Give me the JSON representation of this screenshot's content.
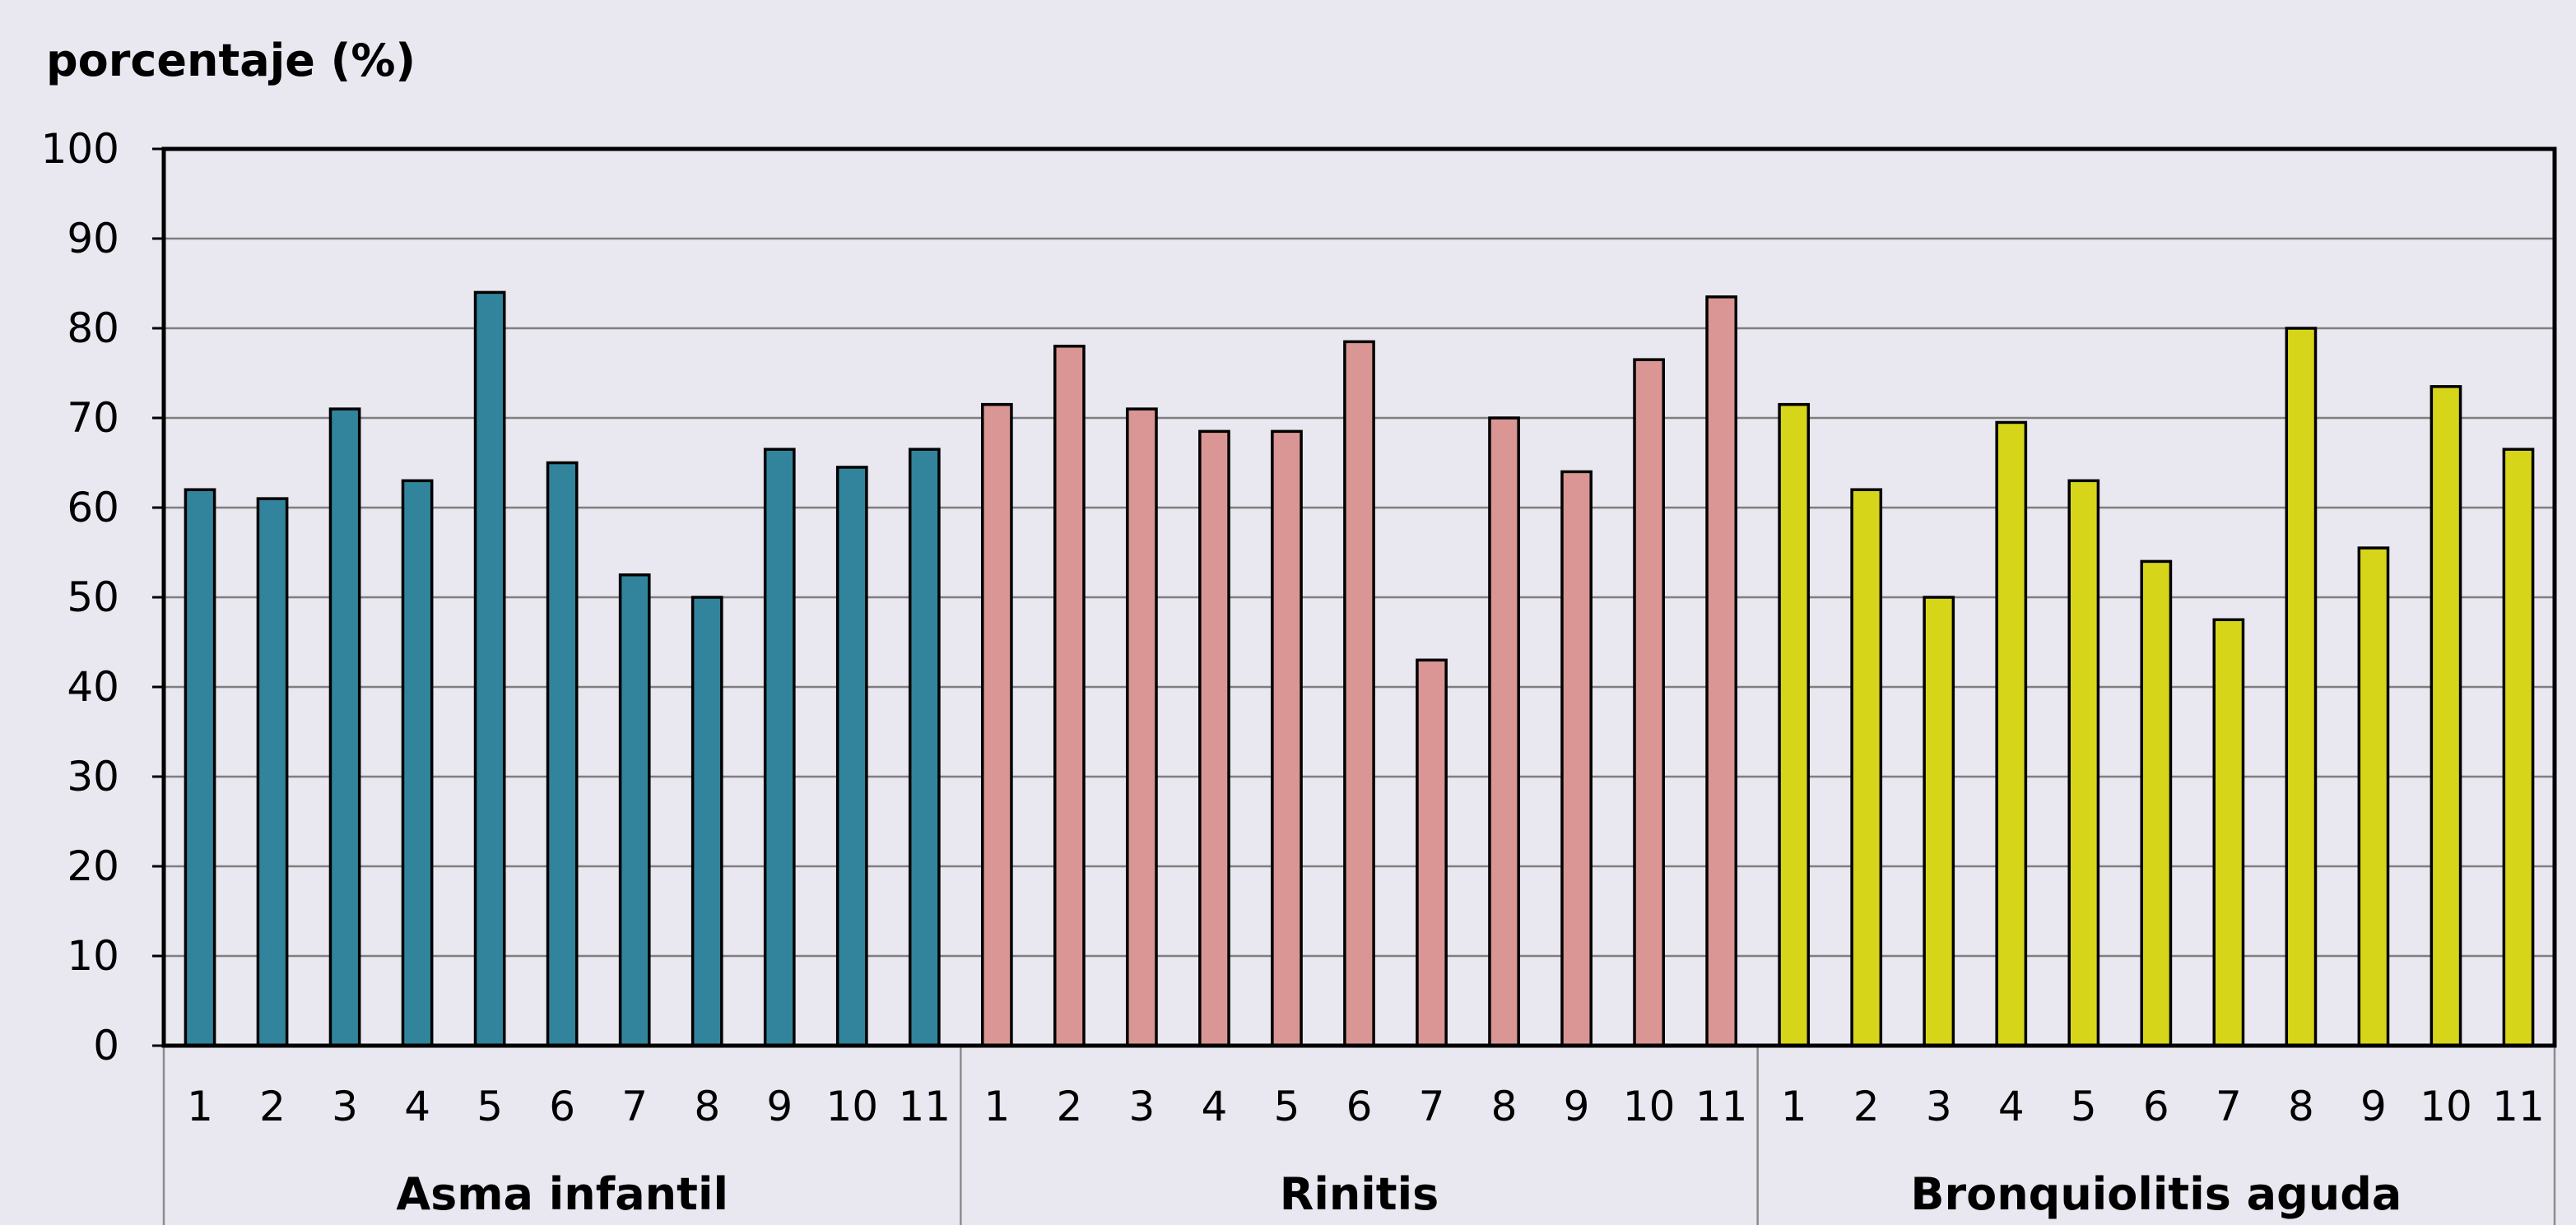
{
  "chart_data": {
    "type": "bar",
    "ylabel": "porcentaje (%)",
    "ylim": [
      0,
      100
    ],
    "yticks": [
      0,
      10,
      20,
      30,
      40,
      50,
      60,
      70,
      80,
      90,
      100
    ],
    "grid": true,
    "legend": "none",
    "categories": [
      "1",
      "2",
      "3",
      "4",
      "5",
      "6",
      "7",
      "8",
      "9",
      "10",
      "11"
    ],
    "groups": [
      {
        "name": "Asma infantil",
        "color": "#31849B",
        "values": [
          62,
          61,
          71,
          63,
          84,
          65,
          52.5,
          50,
          66.5,
          64.5,
          66.5
        ]
      },
      {
        "name": "Rinitis",
        "color": "#D99694",
        "values": [
          71.5,
          78,
          71,
          68.5,
          68.5,
          78.5,
          43,
          70,
          64,
          76.5,
          83.5
        ]
      },
      {
        "name": "Bronquiolitis aguda",
        "color": "#D7D51A",
        "values": [
          71.5,
          62,
          50,
          69.5,
          63,
          54,
          47.5,
          80,
          55.5,
          73.5,
          66.5
        ]
      }
    ]
  }
}
